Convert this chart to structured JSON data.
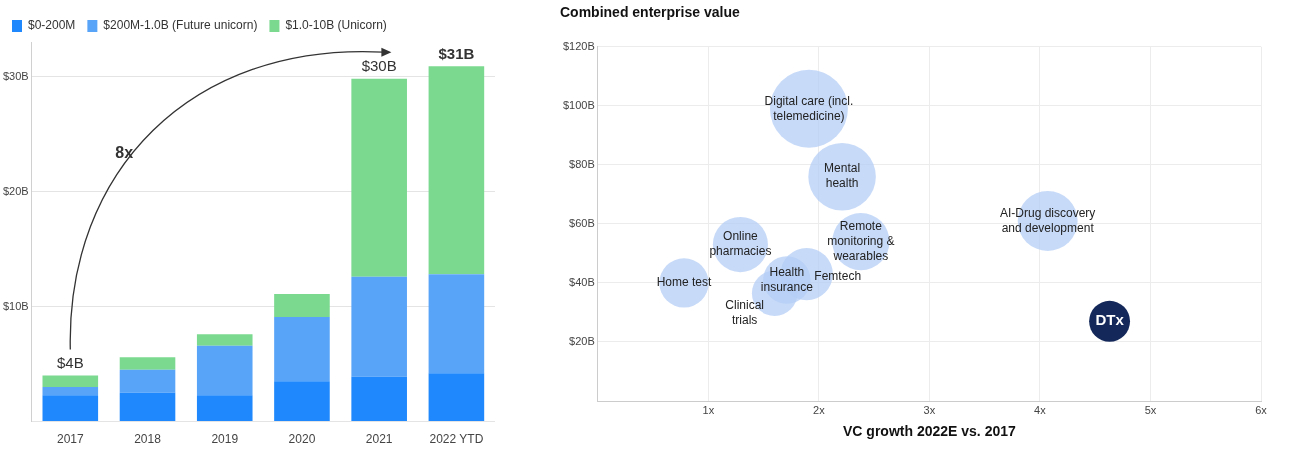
{
  "chart_data": [
    {
      "type": "bar",
      "stacked": true,
      "categories": [
        "2017",
        "2018",
        "2019",
        "2020",
        "2021",
        "2022 YTD"
      ],
      "series": [
        {
          "name": "$0-200M",
          "color": "#1e88fc",
          "values": [
            2.3,
            2.5,
            2.3,
            3.5,
            3.9,
            4.2
          ]
        },
        {
          "name": "$200M-1.0B (Future unicorn)",
          "color": "#58a4f8",
          "values": [
            0.7,
            2.0,
            4.3,
            5.6,
            8.7,
            8.6
          ]
        },
        {
          "name": "$1.0-10B (Unicorn)",
          "color": "#7ad88f",
          "values": [
            1.0,
            1.1,
            1.0,
            2.0,
            17.2,
            18.1
          ]
        }
      ],
      "totals": [
        "$4B",
        null,
        null,
        null,
        "$30B",
        "$31B"
      ],
      "ylim": [
        0,
        33
      ],
      "yticks": [
        {
          "value": 0,
          "label": null
        },
        {
          "value": 10,
          "label": "$10B"
        },
        {
          "value": 20,
          "label": "$20B"
        },
        {
          "value": 30,
          "label": "$30B"
        }
      ],
      "grid": "y",
      "legend": "top left",
      "annotations": [
        "8x"
      ]
    },
    {
      "type": "bubble",
      "title": "Combined enterprise value",
      "xlabel": "VC growth 2022E vs. 2017",
      "series": [
        {
          "name": "Digital care (incl. telemedicine)",
          "color": "#b4cdf6",
          "x": [
            1.91
          ],
          "values": [
            99
          ],
          "sizes": [
            1
          ]
        },
        {
          "name": "Mental health",
          "color": "#b4cdf6",
          "x": [
            2.21
          ],
          "values": [
            76
          ],
          "sizes": [
            0.75
          ]
        },
        {
          "name": "Online pharmacies",
          "color": "#b4cdf6",
          "x": [
            1.29
          ],
          "values": [
            53
          ],
          "sizes": [
            0.5
          ]
        },
        {
          "name": "Home test",
          "color": "#b4cdf6",
          "x": [
            0.78
          ],
          "values": [
            40
          ],
          "sizes": [
            0.4
          ]
        },
        {
          "name": "Remote monitoring & wearables",
          "color": "#b4cdf6",
          "x": [
            2.38
          ],
          "values": [
            54
          ],
          "sizes": [
            0.54
          ]
        },
        {
          "name": "AI-Drug discovery and development",
          "color": "#b4cdf6",
          "x": [
            4.07
          ],
          "values": [
            61
          ],
          "sizes": [
            0.59
          ]
        },
        {
          "name": "Femtech",
          "color": "#b4cdf6",
          "x": [
            1.89
          ],
          "values": [
            43
          ],
          "sizes": [
            0.45
          ]
        },
        {
          "name": "Health insurance",
          "color": "#b4cdf6",
          "x": [
            1.71
          ],
          "values": [
            41
          ],
          "sizes": [
            0.37
          ]
        },
        {
          "name": "Clinical trials",
          "color": "#b4cdf6",
          "x": [
            1.6
          ],
          "values": [
            36.5
          ],
          "sizes": [
            0.34
          ]
        },
        {
          "name": "DTx",
          "color": "#14295a",
          "x": [
            4.63
          ],
          "values": [
            27
          ],
          "sizes": [
            0.275
          ]
        }
      ],
      "xlim": [
        0,
        6
      ],
      "xticks": [
        {
          "value": 1,
          "label": "1x"
        },
        {
          "value": 2,
          "label": "2x"
        },
        {
          "value": 3,
          "label": "3x"
        },
        {
          "value": 4,
          "label": "4x"
        },
        {
          "value": 5,
          "label": "5x"
        },
        {
          "value": 6,
          "label": "6x"
        }
      ],
      "ylim": [
        0,
        120
      ],
      "yticks": [
        {
          "value": 20,
          "label": "$20B"
        },
        {
          "value": 40,
          "label": "$40B"
        },
        {
          "value": 60,
          "label": "$60B"
        },
        {
          "value": 80,
          "label": "$80B"
        },
        {
          "value": 100,
          "label": "$100B"
        },
        {
          "value": 120,
          "label": "$120B"
        }
      ],
      "grid": true
    }
  ]
}
